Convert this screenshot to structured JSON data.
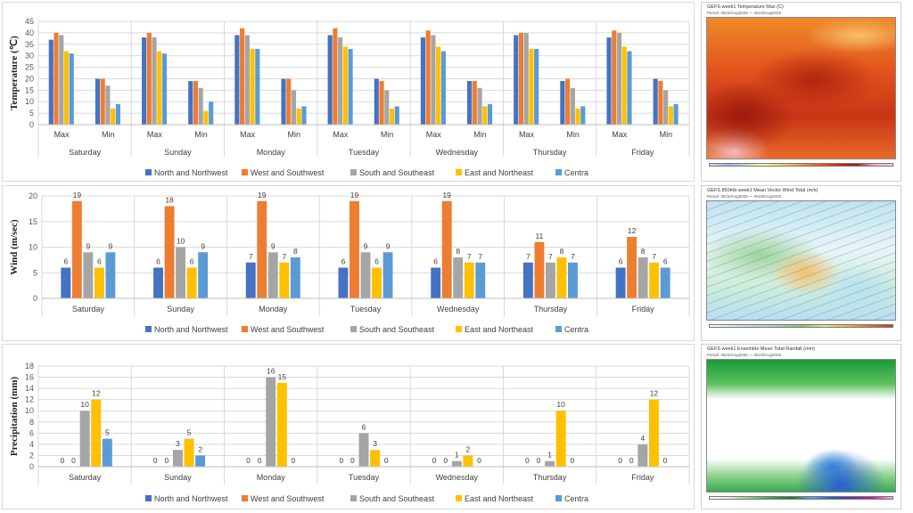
{
  "colors": {
    "North and Northwest": "#4472C4",
    "West and Southwest": "#ED7D31",
    "South and Southeast": "#A5A5A5",
    "East and Northeast": "#FFC000",
    "Centra": "#5B9BD5"
  },
  "chart_data": [
    {
      "type": "bar",
      "ylabel": "Temperature (℃)",
      "ylim": [
        0,
        45
      ],
      "yticks": [
        0,
        5,
        10,
        15,
        20,
        25,
        30,
        35,
        40,
        45
      ],
      "groups": [
        "Saturday",
        "Sunday",
        "Monday",
        "Tuesday",
        "Wednesday",
        "Thursday",
        "Friday"
      ],
      "subcategories": [
        "Max",
        "Min"
      ],
      "series": [
        {
          "name": "North and Northwest",
          "values": [
            37,
            20,
            38,
            19,
            39,
            20,
            39,
            20,
            38,
            19,
            39,
            19,
            38,
            20
          ]
        },
        {
          "name": "West and Southwest",
          "values": [
            40,
            20,
            40,
            19,
            42,
            20,
            42,
            19,
            41,
            19,
            40,
            20,
            41,
            19
          ]
        },
        {
          "name": "South and Southeast",
          "values": [
            39,
            17,
            38,
            16,
            39,
            15,
            38,
            15,
            39,
            16,
            40,
            16,
            40,
            15
          ]
        },
        {
          "name": "East and Northeast",
          "values": [
            32,
            7,
            32,
            6,
            33,
            7,
            34,
            7,
            34,
            8,
            33,
            7,
            34,
            8
          ]
        },
        {
          "name": "Centra",
          "values": [
            31,
            9,
            31,
            10,
            33,
            8,
            33,
            8,
            32,
            9,
            33,
            8,
            32,
            9
          ]
        }
      ],
      "grid": true,
      "legend": "bottom"
    },
    {
      "type": "bar",
      "ylabel": "Wind (m/sec)",
      "ylim": [
        0,
        20
      ],
      "yticks": [
        0,
        5,
        10,
        15,
        20
      ],
      "categories": [
        "Saturday",
        "Sunday",
        "Monday",
        "Tuesday",
        "Wednesday",
        "Thursday",
        "Friday"
      ],
      "series": [
        {
          "name": "North and Northwest",
          "values": [
            6,
            6,
            7,
            6,
            6,
            7,
            6
          ]
        },
        {
          "name": "West and Southwest",
          "values": [
            19,
            18,
            19,
            19,
            19,
            11,
            12
          ]
        },
        {
          "name": "South and Southeast",
          "values": [
            9,
            10,
            9,
            9,
            8,
            7,
            8
          ]
        },
        {
          "name": "East and Northeast",
          "values": [
            6,
            6,
            7,
            6,
            7,
            8,
            7
          ]
        },
        {
          "name": "Centra",
          "values": [
            9,
            9,
            8,
            9,
            7,
            7,
            6
          ]
        }
      ],
      "data_labels": true,
      "grid": true,
      "legend": "bottom"
    },
    {
      "type": "bar",
      "ylabel": "Precipitation (mm)",
      "ylim": [
        0,
        18
      ],
      "yticks": [
        0,
        2,
        4,
        6,
        8,
        10,
        12,
        14,
        16,
        18
      ],
      "categories": [
        "Saturday",
        "Sunday",
        "Monday",
        "Tuesday",
        "Wednesday",
        "Thursday",
        "Friday"
      ],
      "series": [
        {
          "name": "North and Northwest",
          "values": [
            0,
            0,
            0,
            0,
            0,
            0,
            0
          ]
        },
        {
          "name": "West and Southwest",
          "values": [
            0,
            0,
            0,
            0,
            0,
            0,
            0
          ]
        },
        {
          "name": "South and Southeast",
          "values": [
            10,
            3,
            16,
            6,
            1,
            1,
            4
          ]
        },
        {
          "name": "East and Northeast",
          "values": [
            12,
            5,
            15,
            3,
            2,
            10,
            12
          ]
        },
        {
          "name": "Centra",
          "values": [
            5,
            2,
            0,
            0,
            0,
            0,
            0
          ]
        }
      ],
      "data_labels": true,
      "grid": true,
      "legend": "bottom"
    }
  ],
  "maps": [
    {
      "title": "GEFS week1 Temperature Max (C)",
      "period": "Period: 06z24Aug2025 — 06z30Aug2025"
    },
    {
      "title": "GEFS 850mb week1 Mean Vector Wind Total (m/s)",
      "period": "Period: 06z24Aug2025 — 06z30Aug2025"
    },
    {
      "title": "GEFS week1 Ensemble Mean Total Rainfall (mm)",
      "period": "Period: 06z24Aug2025 — 06z30Aug2025"
    }
  ]
}
